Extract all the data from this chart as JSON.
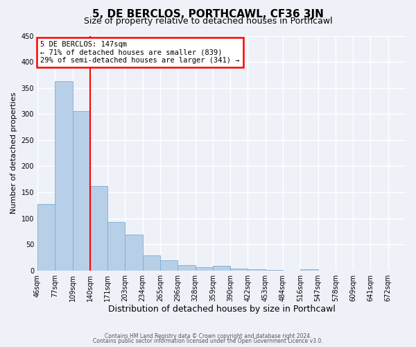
{
  "title": "5, DE BERCLOS, PORTHCAWL, CF36 3JN",
  "subtitle": "Size of property relative to detached houses in Porthcawl",
  "xlabel": "Distribution of detached houses by size in Porthcawl",
  "ylabel": "Number of detached properties",
  "bar_values": [
    128,
    363,
    305,
    162,
    93,
    69,
    29,
    20,
    10,
    6,
    9,
    4,
    2,
    1,
    0,
    2,
    0,
    0,
    0,
    0,
    0
  ],
  "bin_labels": [
    "46sqm",
    "77sqm",
    "109sqm",
    "140sqm",
    "171sqm",
    "203sqm",
    "234sqm",
    "265sqm",
    "296sqm",
    "328sqm",
    "359sqm",
    "390sqm",
    "422sqm",
    "453sqm",
    "484sqm",
    "516sqm",
    "547sqm",
    "578sqm",
    "609sqm",
    "641sqm",
    "672sqm"
  ],
  "bar_color": "#b8cfe8",
  "bar_edge_color": "#7aadd4",
  "vline_x": 3.0,
  "vline_color": "red",
  "annotation_text": "5 DE BERCLOS: 147sqm\n← 71% of detached houses are smaller (839)\n29% of semi-detached houses are larger (341) →",
  "annotation_box_color": "white",
  "annotation_box_edge_color": "red",
  "ylim": [
    0,
    450
  ],
  "yticks": [
    0,
    50,
    100,
    150,
    200,
    250,
    300,
    350,
    400,
    450
  ],
  "footer_line1": "Contains HM Land Registry data © Crown copyright and database right 2024.",
  "footer_line2": "Contains public sector information licensed under the Open Government Licence v3.0.",
  "background_color": "#eef2f8",
  "grid_color": "white",
  "title_fontsize": 11,
  "subtitle_fontsize": 9,
  "xlabel_fontsize": 9,
  "ylabel_fontsize": 8,
  "tick_fontsize": 7
}
